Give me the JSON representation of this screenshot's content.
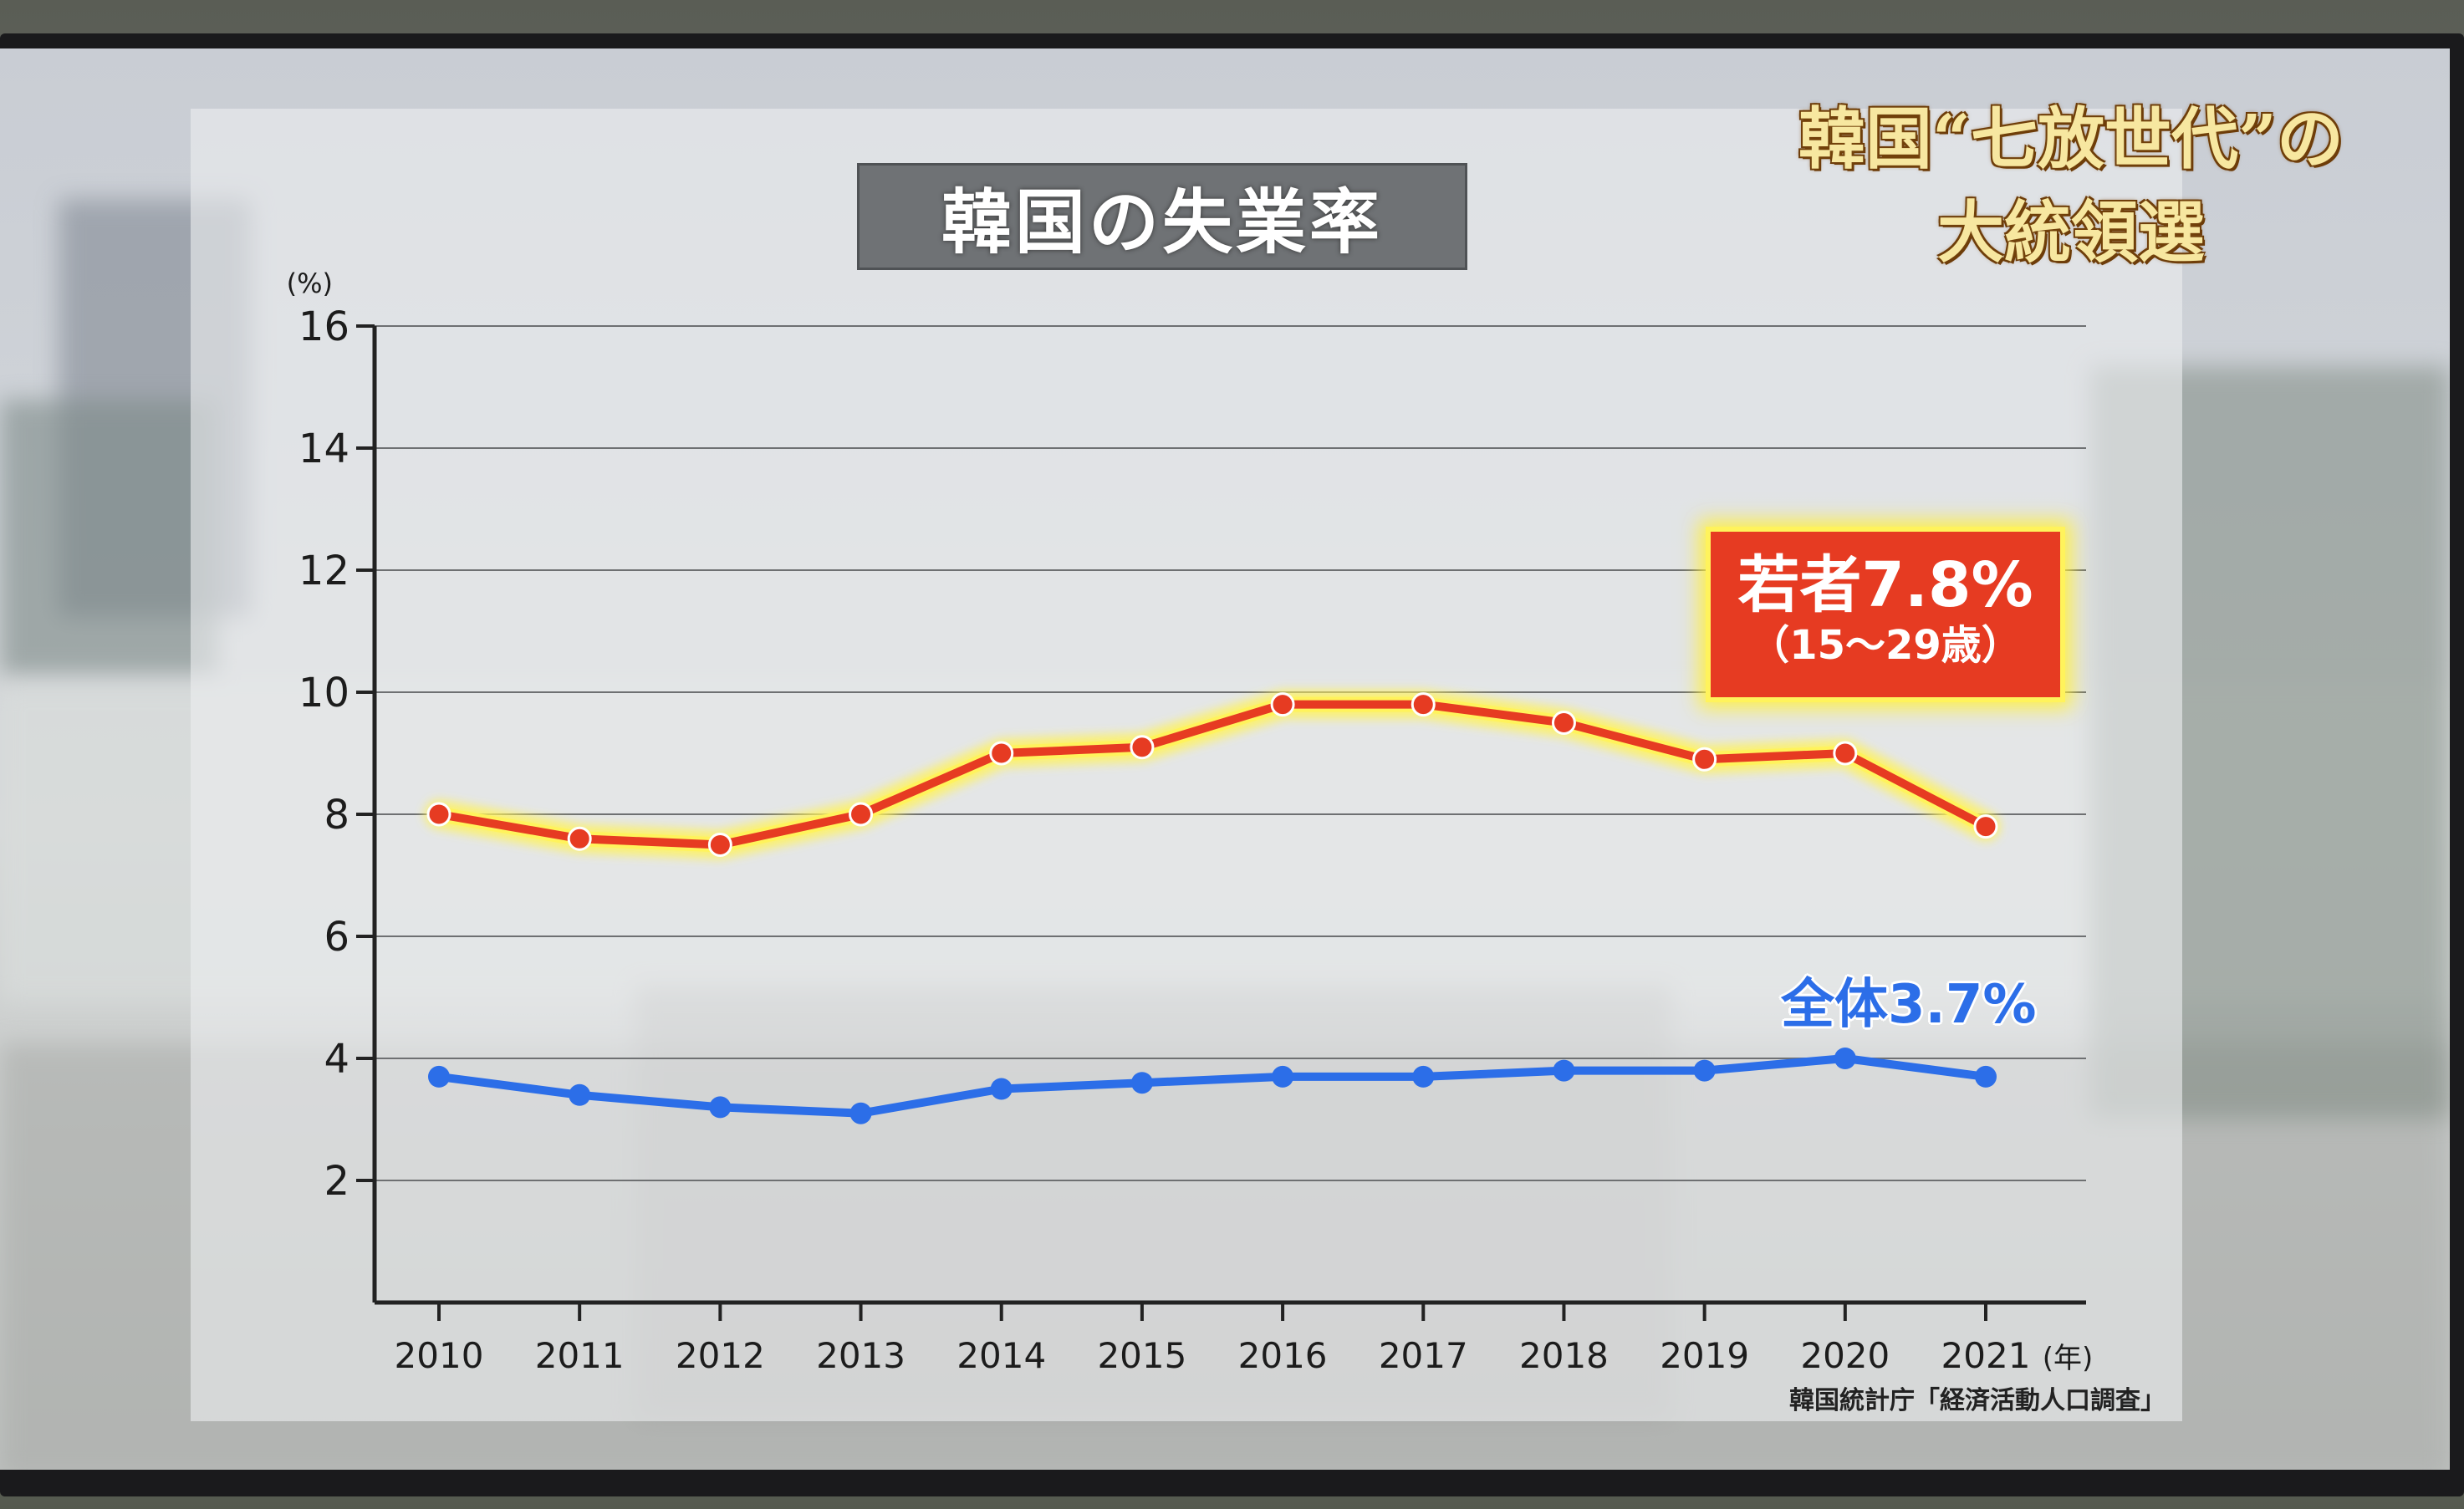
{
  "headline": {
    "line1": "韓国“七放世代”の",
    "line2": "大統領選"
  },
  "chart_data": {
    "type": "line",
    "title": "韓国の失業率",
    "y_unit_label": "(%)",
    "x_unit_label": "(年)",
    "xlabel": "",
    "ylabel": "",
    "categories": [
      "2010",
      "2011",
      "2012",
      "2013",
      "2014",
      "2015",
      "2016",
      "2017",
      "2018",
      "2019",
      "2020",
      "2021"
    ],
    "y_ticks": [
      "2",
      "4",
      "6",
      "8",
      "10",
      "12",
      "14",
      "16"
    ],
    "ylim": [
      0,
      16
    ],
    "grid": true,
    "series": [
      {
        "name": "若者",
        "color": "#e63b22",
        "glow": "#fff35c",
        "values": [
          8.0,
          7.6,
          7.5,
          8.0,
          9.0,
          9.1,
          9.8,
          9.8,
          9.5,
          8.9,
          9.0,
          7.8
        ]
      },
      {
        "name": "全体",
        "color": "#2c6ee8",
        "values": [
          3.7,
          3.4,
          3.2,
          3.1,
          3.5,
          3.6,
          3.7,
          3.7,
          3.8,
          3.8,
          4.0,
          3.7
        ]
      }
    ],
    "annotations": {
      "youth_main": "若者7.8%",
      "youth_sub": "（15～29歳）",
      "total": "全体3.7%"
    },
    "source": "韓国統計庁「経済活動人口調査」"
  }
}
